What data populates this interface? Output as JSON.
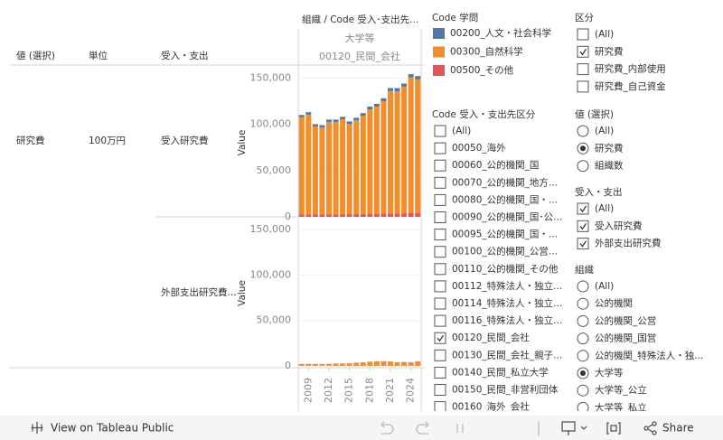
{
  "table": {
    "headers": [
      "値 (選択)",
      "単位",
      "受入・支出"
    ],
    "row_value": "研究費",
    "row_unit": "100万円",
    "row_labels": [
      "受入研究費",
      "外部支出研究費..."
    ],
    "column_header": "組織 / Code 受入･支出先...",
    "column_group": "大学等",
    "column_sub": "00120_民間_会社"
  },
  "chart_data": [
    {
      "type": "bar",
      "stacked": true,
      "y_label": "Value",
      "x": [
        2008,
        2009,
        2010,
        2011,
        2012,
        2013,
        2014,
        2015,
        2016,
        2017,
        2018,
        2019,
        2020,
        2021,
        2022,
        2023,
        2024,
        2025
      ],
      "xlim": [
        2007.5,
        2025.5
      ],
      "ylim": [
        0,
        160000
      ],
      "yticks": [
        0,
        {
          "value": 50000,
          "label": "50,000"
        },
        {
          "value": 100000,
          "label": "100,000"
        },
        {
          "value": 150000,
          "label": "150,000"
        }
      ],
      "grid": true,
      "series": [
        {
          "name": "00500_その他",
          "color": "#e15759",
          "values": [
            2500,
            2600,
            2500,
            2500,
            2600,
            2700,
            2800,
            2900,
            3000,
            3100,
            3200,
            3300,
            3400,
            3600,
            3700,
            3800,
            3900,
            4000
          ]
        },
        {
          "name": "00300_自然科学",
          "color": "#f28e2b",
          "values": [
            105000,
            107900,
            95100,
            94100,
            99900,
            99800,
            102600,
            97500,
            101300,
            106100,
            112900,
            115700,
            121500,
            132200,
            132000,
            136800,
            146600,
            144400
          ]
        },
        {
          "name": "00200_人文・社会科学",
          "color": "#4e79a7",
          "values": [
            2500,
            2500,
            2400,
            2400,
            2500,
            2500,
            2600,
            2600,
            2700,
            2800,
            2900,
            3000,
            3100,
            3200,
            3300,
            3400,
            3500,
            3600
          ]
        }
      ]
    },
    {
      "type": "bar",
      "stacked": true,
      "y_label": "Value",
      "x": [
        2008,
        2009,
        2010,
        2011,
        2012,
        2013,
        2014,
        2015,
        2016,
        2017,
        2018,
        2019,
        2020,
        2021,
        2022,
        2023,
        2024,
        2025
      ],
      "xlim": [
        2007.5,
        2025.5
      ],
      "xticks": [
        2009,
        2012,
        2015,
        2018,
        2021,
        2024
      ],
      "ylim": [
        0,
        160000
      ],
      "yticks": [
        0,
        {
          "value": 50000,
          "label": "50,000"
        },
        {
          "value": 100000,
          "label": "100,000"
        },
        {
          "value": 150000,
          "label": "150,000"
        }
      ],
      "grid": true,
      "series": [
        {
          "name": "00500_その他",
          "color": "#e15759",
          "values": [
            200,
            200,
            200,
            200,
            200,
            200,
            200,
            200,
            300,
            300,
            300,
            300,
            300,
            300,
            300,
            300,
            300,
            300
          ]
        },
        {
          "name": "00300_自然科学",
          "color": "#f28e2b",
          "values": [
            1800,
            2000,
            1800,
            1900,
            2100,
            2300,
            2400,
            2600,
            3200,
            3500,
            4200,
            4700,
            4900,
            4500,
            3700,
            3900,
            3700,
            4700
          ]
        },
        {
          "name": "00200_人文・社会科学",
          "color": "#4e79a7",
          "values": [
            100,
            100,
            100,
            100,
            100,
            100,
            100,
            100,
            100,
            100,
            100,
            100,
            100,
            100,
            100,
            100,
            100,
            100
          ]
        }
      ]
    }
  ],
  "legend": {
    "title": "Code 学問",
    "items": [
      {
        "name": "00200_人文・社会科学",
        "color": "#4e79a7"
      },
      {
        "name": "00300_自然科学",
        "color": "#f28e2b"
      },
      {
        "name": "00500_その他",
        "color": "#e15759"
      }
    ]
  },
  "filters": [
    {
      "title": "Code 受入・支出先区分",
      "kind": "checkbox",
      "items": [
        {
          "label": "(All)"
        },
        {
          "label": "00050_海外"
        },
        {
          "label": "00060_公的機関_国"
        },
        {
          "label": "00070_公的機関_地方..."
        },
        {
          "label": "00080_公的機関_国・..."
        },
        {
          "label": "00090_公的機関_国･公..."
        },
        {
          "label": "00095_公的機関_国・..."
        },
        {
          "label": "00100_公的機関_公営..."
        },
        {
          "label": "00110_公的機関_その他"
        },
        {
          "label": "00112_特殊法人・独立..."
        },
        {
          "label": "00114_特殊法人・独立..."
        },
        {
          "label": "00116_特殊法人・独立..."
        },
        {
          "label": "00120_民間_会社",
          "checked": true
        },
        {
          "label": "00130_民間_会社_親子..."
        },
        {
          "label": "00140_民間_私立大学"
        },
        {
          "label": "00150_民間_非営利団体"
        },
        {
          "label": "00160_海外_会社"
        }
      ]
    },
    {
      "title": "区分",
      "kind": "checkbox",
      "items": [
        {
          "label": "(All)"
        },
        {
          "label": "研究費",
          "checked": true
        },
        {
          "label": "研究費_内部使用"
        },
        {
          "label": "研究費_自己資金"
        }
      ]
    },
    {
      "title": "値 (選択)",
      "kind": "radio",
      "items": [
        {
          "label": "(All)"
        },
        {
          "label": "研究費",
          "checked": true
        },
        {
          "label": "組織数"
        }
      ]
    },
    {
      "title": "受入・支出",
      "kind": "checkbox",
      "items": [
        {
          "label": "(All)",
          "checked": true
        },
        {
          "label": "受入研究費",
          "checked": true
        },
        {
          "label": "外部支出研究費",
          "checked": true
        }
      ]
    },
    {
      "title": "組織",
      "kind": "radio",
      "items": [
        {
          "label": "(All)"
        },
        {
          "label": "公的機関"
        },
        {
          "label": "公的機関_公営"
        },
        {
          "label": "公的機関_国営"
        },
        {
          "label": "公的機関_特殊法人・独..."
        },
        {
          "label": "大学等",
          "checked": true
        },
        {
          "label": "大学等_公立"
        },
        {
          "label": "大学等_私立"
        }
      ]
    }
  ],
  "toolbar": {
    "view_link": "View on Tableau Public",
    "share": "Share"
  }
}
